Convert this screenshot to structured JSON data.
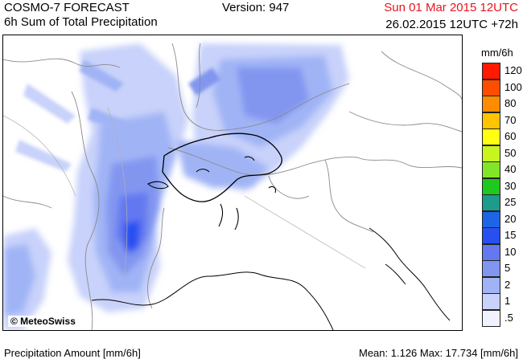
{
  "header": {
    "title": "COSMO-7 FORECAST",
    "subtitle": "6h Sum of Total Precipitation",
    "version": "Version: 947",
    "valid_time": "Sun 01 Mar 2015 12UTC",
    "run_info": "26.02.2015 12UTC +72h"
  },
  "map": {
    "copyright": "© MeteoSwiss"
  },
  "legend": {
    "unit": "mm/6h",
    "classes": [
      {
        "label": "120",
        "color": "#ff1a00"
      },
      {
        "label": "100",
        "color": "#ff4d00"
      },
      {
        "label": "80",
        "color": "#ff8c00"
      },
      {
        "label": "70",
        "color": "#ffc300"
      },
      {
        "label": "60",
        "color": "#ffff14"
      },
      {
        "label": "50",
        "color": "#c8f51e"
      },
      {
        "label": "40",
        "color": "#82e628"
      },
      {
        "label": "30",
        "color": "#1ec81e"
      },
      {
        "label": "25",
        "color": "#1e9b8c"
      },
      {
        "label": "20",
        "color": "#1e64e6"
      },
      {
        "label": "15",
        "color": "#2850f0"
      },
      {
        "label": "10",
        "color": "#6478f0"
      },
      {
        "label": "5",
        "color": "#8296f0"
      },
      {
        "label": "2",
        "color": "#a0b4f5"
      },
      {
        "label": "1",
        "color": "#c8d2fa"
      },
      {
        "label": ".5",
        "color": "#f0f2ff"
      }
    ]
  },
  "footer": {
    "left": "Precipitation Amount [mm/6h]",
    "right": "Mean:  1.126 Max:  17.734 [mm/6h]"
  }
}
